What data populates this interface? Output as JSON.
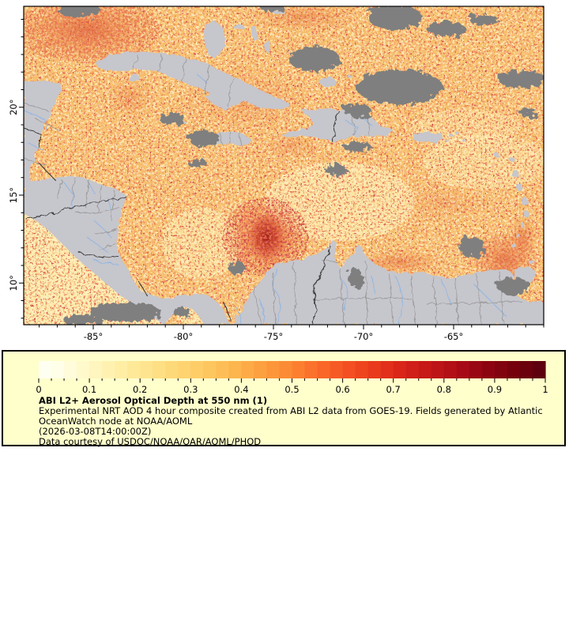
{
  "map": {
    "region": "Caribbean Sea and surrounding lands",
    "x_axis": {
      "range_lon": [
        -88.86,
        -60.0
      ],
      "major_ticks": [
        {
          "value": -85,
          "label": "-85°"
        },
        {
          "value": -80,
          "label": "-80°"
        },
        {
          "value": -75,
          "label": "-75°"
        },
        {
          "value": -70,
          "label": "-70°"
        },
        {
          "value": -65,
          "label": "-65°"
        }
      ],
      "minor_tick_step_deg": 1
    },
    "y_axis": {
      "range_lat": [
        7.63,
        25.74
      ],
      "major_ticks": [
        {
          "value": 20,
          "label": "20°"
        },
        {
          "value": 15,
          "label": "15°"
        },
        {
          "value": 10,
          "label": "10°"
        }
      ],
      "minor_tick_step_deg": 1
    }
  },
  "legend": {
    "background": "#FFFFCC",
    "colorbar": {
      "min": 0,
      "max": 1,
      "blocks": 40,
      "minor_tick_step": 0.025,
      "major_ticks": [
        {
          "value": 0.0,
          "label": "0"
        },
        {
          "value": 0.1,
          "label": "0.1"
        },
        {
          "value": 0.2,
          "label": "0.2"
        },
        {
          "value": 0.3,
          "label": "0.3"
        },
        {
          "value": 0.4,
          "label": "0.4"
        },
        {
          "value": 0.5,
          "label": "0.5"
        },
        {
          "value": 0.6,
          "label": "0.6"
        },
        {
          "value": 0.7,
          "label": "0.7"
        },
        {
          "value": 0.8,
          "label": "0.8"
        },
        {
          "value": 0.9,
          "label": "0.9"
        },
        {
          "value": 1.0,
          "label": "1"
        }
      ],
      "gradient": [
        [
          0.0,
          "#FFFFF5"
        ],
        [
          0.05,
          "#FFFDE4"
        ],
        [
          0.1,
          "#FFF7C4"
        ],
        [
          0.15,
          "#FFF0AA"
        ],
        [
          0.2,
          "#FEE793"
        ],
        [
          0.25,
          "#FEDC7E"
        ],
        [
          0.3,
          "#FED06B"
        ],
        [
          0.35,
          "#FEC25B"
        ],
        [
          0.4,
          "#FDB04A"
        ],
        [
          0.45,
          "#FD9B3C"
        ],
        [
          0.5,
          "#FC8532"
        ],
        [
          0.55,
          "#FA6C2A"
        ],
        [
          0.6,
          "#F55523"
        ],
        [
          0.65,
          "#EC3F1E"
        ],
        [
          0.7,
          "#DE2A1A"
        ],
        [
          0.75,
          "#CC1B17"
        ],
        [
          0.8,
          "#B81118"
        ],
        [
          0.85,
          "#A00815"
        ],
        [
          0.9,
          "#860310"
        ],
        [
          0.95,
          "#70010C"
        ],
        [
          1.0,
          "#5A000E"
        ]
      ]
    },
    "title": "ABI L2+ Aerosol Optical Depth at 550 nm (1)",
    "description_line1": "Experimental NRT AOD 4 hour composite created from ABI L2 data from GOES-19. Fields generated by Atlantic",
    "description_line2": "OceanWatch node at NOAA/AOML",
    "timestamp_line": "(2026-03-08T14:00:00Z)",
    "credit_line": "Data courtesy of USDOC/NOAA/OAR/AOML/PHOD"
  },
  "colors": {
    "land": "#C6C6CD",
    "missing_data_cloud": "#7F7F7F",
    "river": "#8FB6E2",
    "admin_border": "#9A9A9A",
    "country_border": "#3A3A38",
    "axis": "#000000",
    "page_background": "#FFFFFF"
  }
}
